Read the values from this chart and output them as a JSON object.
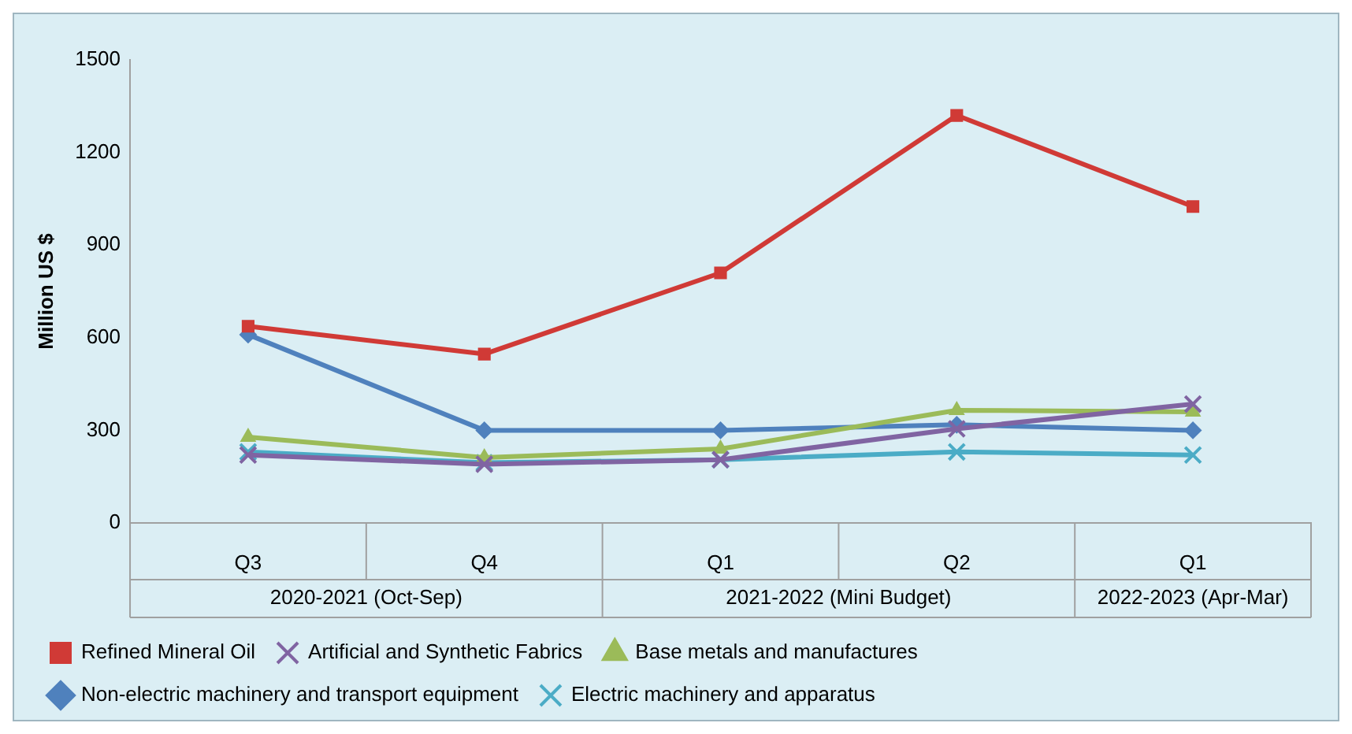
{
  "chart_data": {
    "type": "line",
    "ylabel": "Million US $",
    "categories": [
      "Q3",
      "Q4",
      "Q1",
      "Q2",
      "Q1"
    ],
    "annotations": [
      "2020-2021 (Oct-Sep)",
      "2021-2022 (Mini Budget)",
      "2022-2023 (Apr-Mar)"
    ],
    "series": [
      {
        "name": "Refined Mineral Oil",
        "color": "#d03a36",
        "marker": "square",
        "values": [
          637,
          547,
          810,
          1320,
          1025
        ]
      },
      {
        "name": "Artificial and Synthetic Fabrics",
        "color": "#8064a2",
        "marker": "cross",
        "values": [
          220,
          190,
          205,
          305,
          385
        ]
      },
      {
        "name": "Base metals and manufactures",
        "color": "#9bbb59",
        "marker": "triangle",
        "values": [
          278,
          212,
          240,
          365,
          360
        ]
      },
      {
        "name": "Non-electric machinery and transport equipment",
        "color": "#4f81bd",
        "marker": "diamond",
        "values": [
          610,
          300,
          300,
          318,
          300
        ]
      },
      {
        "name": "Electric machinery and apparatus",
        "color": "#4bacc6",
        "marker": "cross",
        "values": [
          230,
          195,
          205,
          230,
          220
        ]
      }
    ],
    "ylim": [
      0,
      1500
    ],
    "yticks": [
      0,
      300,
      600,
      900,
      1200,
      1500
    ],
    "grid": false,
    "legend": "bottom"
  }
}
